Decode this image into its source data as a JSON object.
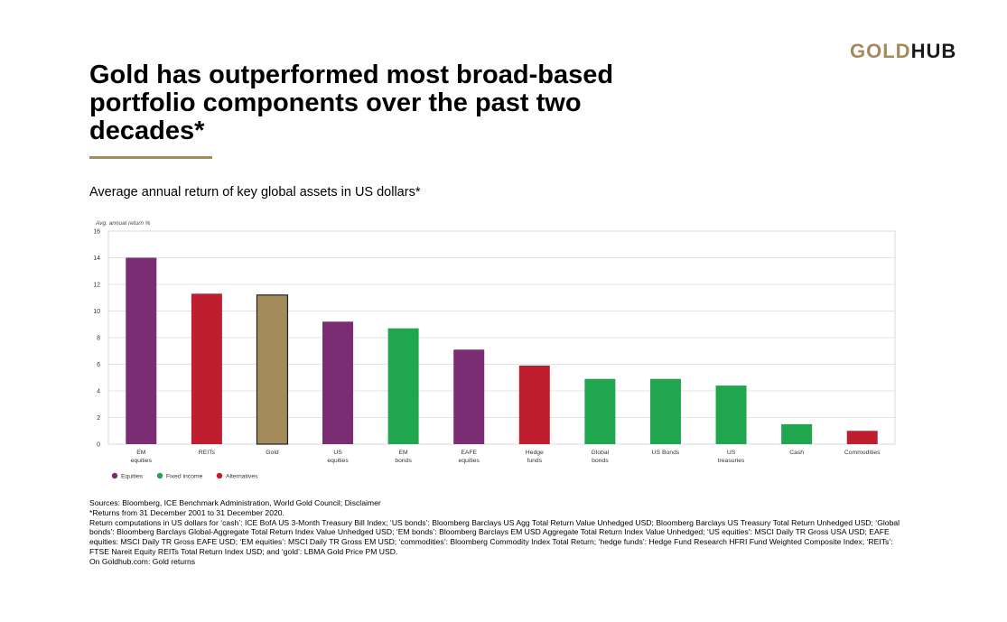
{
  "brand": {
    "part1": "GOLD",
    "part2": "HUB"
  },
  "headline": "Gold has outperformed most broad-based portfolio components over the past two decades*",
  "subtitle": "Average annual return of key global assets in US dollars*",
  "chart_data": {
    "type": "bar",
    "ylabel": "Avg. annual return %",
    "ylim": [
      0,
      16
    ],
    "yticks": [
      0,
      2,
      4,
      6,
      8,
      10,
      12,
      14,
      16
    ],
    "grid": true,
    "categories": [
      [
        "EM",
        "equities"
      ],
      [
        "REITs"
      ],
      [
        "Gold"
      ],
      [
        "US",
        "equities"
      ],
      [
        "EM",
        "bonds"
      ],
      [
        "EAFE",
        "equities"
      ],
      [
        "Hedge",
        "funds"
      ],
      [
        "Global",
        "bonds"
      ],
      [
        "US Bonds"
      ],
      [
        "US",
        "treasuries"
      ],
      [
        "Cash"
      ],
      [
        "Commodities"
      ]
    ],
    "values": [
      14.0,
      11.3,
      11.2,
      9.2,
      8.7,
      7.1,
      5.9,
      4.9,
      4.9,
      4.4,
      1.5,
      1.0
    ],
    "groups": [
      "Equities",
      "Alternatives",
      "Gold",
      "Equities",
      "Fixed income",
      "Equities",
      "Alternatives",
      "Fixed income",
      "Fixed income",
      "Fixed income",
      "Fixed income",
      "Alternatives"
    ],
    "colors": {
      "Equities": "#7B2D73",
      "Fixed income": "#1FA64E",
      "Alternatives": "#BE1E2D",
      "Gold": "#A38B5C"
    },
    "legend": [
      "Equities",
      "Fixed income",
      "Alternatives"
    ],
    "legend_position": "bottom-left"
  },
  "notes": [
    "Sources: Bloomberg, ICE Benchmark Administration, World Gold Council; Disclaimer",
    "*Returns from 31 December 2001 to 31 December 2020.",
    "Return computations in US dollars for ‘cash’: ICE BofA US 3-Month Treasury Bill Index; ‘US bonds’: Bloomberg Barclays US Agg Total Return Value Unhedged USD; Bloomberg Barclays US Treasury Total Return Unhedged USD; ‘Global bonds’: Bloomberg Barclays Global-Aggregate Total Return Index Value Unhedged USD; ‘EM bonds’: Bloomberg Barclays EM USD Aggregate Total Return Index Value Unhedged; ‘US equities’: MSCI Daily TR Gross USA USD; EAFE equities: MSCI Daily TR Gross EAFE USD; ‘EM equities’: MSCI Daily TR Gross EM USD; ‘commodities’: Bloomberg Commodity Index Total Return; ‘hedge funds’: Hedge Fund Research HFRI Fund Weighted Composite Index; ‘REITs’: FTSE Nareit Equity REITs Total Return Index USD; and ‘gold’: LBMA Gold Price PM USD.",
    "On Goldhub.com: Gold returns"
  ]
}
